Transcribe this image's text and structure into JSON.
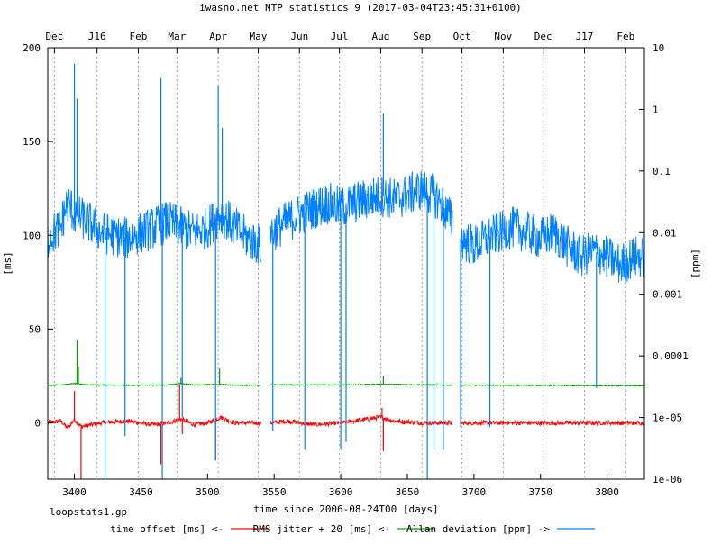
{
  "title": "iwasno.net NTP statistics 9 (2017-03-04T23:45:31+0100)",
  "footer_file": "loopstats1.gp",
  "chart_data": {
    "type": "line",
    "xlabel": "time since 2006-08-24T00 [days]",
    "ylabel": "[ms]",
    "y2label": "[ppm]",
    "xlim": [
      3380,
      3828
    ],
    "ylim": [
      -30,
      200
    ],
    "y2lim": [
      1e-06,
      10
    ],
    "y2scale": "log",
    "grid": "vertical dotted at month marks",
    "x_ticks": [
      3400,
      3450,
      3500,
      3550,
      3600,
      3650,
      3700,
      3750,
      3800
    ],
    "y_ticks": [
      0,
      50,
      100,
      150,
      200
    ],
    "y2_ticks": [
      {
        "label": "10",
        "value": 10
      },
      {
        "label": "1",
        "value": 1
      },
      {
        "label": "0.1",
        "value": 0.1
      },
      {
        "label": "0.01",
        "value": 0.01
      },
      {
        "label": "0.001",
        "value": 0.001
      },
      {
        "label": "0.0001",
        "value": 0.0001
      },
      {
        "label": "1e-05",
        "value": 1e-05
      },
      {
        "label": "1e-06",
        "value": 1e-06
      }
    ],
    "month_ticks": [
      {
        "label": "Dec",
        "day": 3385
      },
      {
        "label": "J16",
        "day": 3417
      },
      {
        "label": "Feb",
        "day": 3448
      },
      {
        "label": "Mar",
        "day": 3477
      },
      {
        "label": "Apr",
        "day": 3508
      },
      {
        "label": "May",
        "day": 3538
      },
      {
        "label": "Jun",
        "day": 3569
      },
      {
        "label": "Jul",
        "day": 3599
      },
      {
        "label": "Aug",
        "day": 3630
      },
      {
        "label": "Sep",
        "day": 3661
      },
      {
        "label": "Oct",
        "day": 3691
      },
      {
        "label": "Nov",
        "day": 3722
      },
      {
        "label": "Dec",
        "day": 3752
      },
      {
        "label": "J17",
        "day": 3783
      },
      {
        "label": "Feb",
        "day": 3814
      }
    ],
    "legend": {
      "position": "bottom",
      "entries": [
        {
          "label": "time offset [ms] <-",
          "color": "#ff0000"
        },
        {
          "label": "RMS jitter + 20 [ms] <-",
          "color": "#00a000"
        },
        {
          "label": "Allan deviation [ppm] ->",
          "color": "#0080ff"
        }
      ]
    },
    "gaps": [
      [
        3540,
        3547
      ],
      [
        3684,
        3690
      ]
    ],
    "series": [
      {
        "name": "time offset [ms]",
        "axis": "left",
        "color": "#ff0000",
        "x": [
          3380,
          3390,
          3395,
          3400,
          3405,
          3420,
          3440,
          3460,
          3470,
          3480,
          3490,
          3500,
          3510,
          3520,
          3540,
          3548,
          3560,
          3580,
          3600,
          3620,
          3630,
          3640,
          3660,
          3684,
          3690,
          3700,
          3720,
          3750,
          3780,
          3800,
          3828
        ],
        "y": [
          0,
          1,
          -3,
          2,
          -2,
          0,
          1,
          -1,
          0,
          2,
          -1,
          0,
          3,
          0,
          0,
          0,
          1,
          -1,
          0,
          2,
          3,
          1,
          0,
          0,
          0,
          0,
          0,
          0,
          0,
          0,
          0
        ],
        "spikes": [
          {
            "x": 3400,
            "y": 17
          },
          {
            "x": 3405,
            "y": -30
          },
          {
            "x": 3465,
            "y": -22
          },
          {
            "x": 3479,
            "y": 20
          },
          {
            "x": 3481,
            "y": -6
          },
          {
            "x": 3506,
            "y": -20
          },
          {
            "x": 3631,
            "y": 8
          },
          {
            "x": 3632,
            "y": -15
          }
        ]
      },
      {
        "name": "RMS jitter + 20 [ms]",
        "axis": "left",
        "color": "#00a000",
        "x": [
          3380,
          3395,
          3400,
          3410,
          3440,
          3470,
          3480,
          3490,
          3510,
          3520,
          3540,
          3548,
          3600,
          3630,
          3684,
          3690,
          3750,
          3800,
          3828
        ],
        "y": [
          20,
          20.5,
          21,
          20.3,
          20,
          20.2,
          21,
          20.2,
          20.5,
          20.1,
          20,
          20.3,
          20.2,
          20.6,
          20.1,
          20.1,
          20,
          19.8,
          19.8
        ],
        "spikes": [
          {
            "x": 3402,
            "y": 44
          },
          {
            "x": 3403,
            "y": 30
          },
          {
            "x": 3480,
            "y": 24
          },
          {
            "x": 3509,
            "y": 29
          },
          {
            "x": 3632,
            "y": 25
          }
        ]
      },
      {
        "name": "Allan deviation [ppm]",
        "axis": "right",
        "color": "#0080ff",
        "x": [
          3380,
          3390,
          3395,
          3400,
          3410,
          3420,
          3430,
          3440,
          3450,
          3460,
          3470,
          3480,
          3490,
          3500,
          3510,
          3520,
          3530,
          3540,
          3548,
          3560,
          3570,
          3580,
          3590,
          3600,
          3610,
          3620,
          3630,
          3640,
          3650,
          3660,
          3670,
          3680,
          3684,
          3690,
          3700,
          3710,
          3720,
          3730,
          3740,
          3750,
          3760,
          3770,
          3780,
          3790,
          3800,
          3810,
          3820,
          3828
        ],
        "y": [
          0.008,
          0.012,
          0.03,
          0.02,
          0.015,
          0.01,
          0.009,
          0.008,
          0.01,
          0.012,
          0.015,
          0.012,
          0.01,
          0.012,
          0.02,
          0.012,
          0.008,
          0.006,
          0.01,
          0.015,
          0.02,
          0.025,
          0.03,
          0.025,
          0.03,
          0.035,
          0.04,
          0.035,
          0.04,
          0.05,
          0.04,
          0.02,
          0.015,
          0.008,
          0.006,
          0.008,
          0.01,
          0.012,
          0.01,
          0.008,
          0.01,
          0.006,
          0.004,
          0.005,
          0.004,
          0.003,
          0.004,
          0.004
        ],
        "spikes": [
          {
            "x": 3400,
            "y": 5.5
          },
          {
            "x": 3402,
            "y": 1.5
          },
          {
            "x": 3465,
            "y": 3.2
          },
          {
            "x": 3508,
            "y": 2.4
          },
          {
            "x": 3511,
            "y": 0.5
          },
          {
            "x": 3632,
            "y": 0.85
          },
          {
            "x": 3423,
            "y": 1e-06
          },
          {
            "x": 3438,
            "y": 5e-06
          },
          {
            "x": 3466,
            "y": 1e-06
          },
          {
            "x": 3481,
            "y": 1e-05
          },
          {
            "x": 3506,
            "y": 2e-06
          },
          {
            "x": 3549,
            "y": 6e-06
          },
          {
            "x": 3573,
            "y": 3e-06
          },
          {
            "x": 3600,
            "y": 3e-06
          },
          {
            "x": 3604,
            "y": 4e-06
          },
          {
            "x": 3665,
            "y": 1e-06
          },
          {
            "x": 3670,
            "y": 3e-06
          },
          {
            "x": 3677,
            "y": 3e-06
          },
          {
            "x": 3690,
            "y": 7e-06
          },
          {
            "x": 3712,
            "y": 7e-06
          },
          {
            "x": 3792,
            "y": 3e-05
          }
        ]
      }
    ]
  }
}
